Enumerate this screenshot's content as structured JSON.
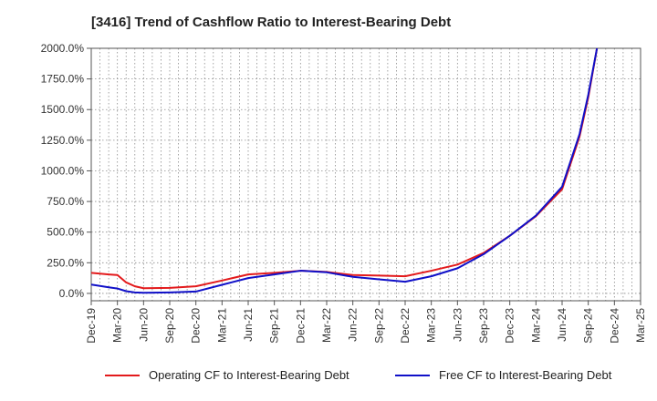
{
  "chart_data": {
    "type": "line",
    "title": "[3416]  Trend of Cashflow Ratio to Interest-Bearing Debt",
    "xlabel": "",
    "ylabel": "",
    "x": [
      "Dec-19",
      "Mar-20",
      "Jun-20",
      "Sep-20",
      "Dec-20",
      "Mar-21",
      "Jun-21",
      "Sep-21",
      "Dec-21",
      "Mar-22",
      "Jun-22",
      "Sep-22",
      "Dec-22",
      "Mar-23",
      "Jun-23",
      "Sep-23",
      "Dec-23",
      "Mar-24",
      "Jun-24",
      "Sep-24",
      "Dec-24",
      "Mar-25"
    ],
    "ylim": [
      -60,
      2000
    ],
    "yticks": [
      0,
      250,
      500,
      750,
      1000,
      1250,
      1500,
      1750,
      2000
    ],
    "ytick_labels": [
      "0.0%",
      "250.0%",
      "500.0%",
      "750.0%",
      "1000.0%",
      "1250.0%",
      "1500.0%",
      "1750.0%",
      "2000.0%"
    ],
    "grid": true,
    "legend_position": "bottom",
    "series": [
      {
        "name": "Operating CF to Interest-Bearing Debt",
        "color": "#e31a1c",
        "points": [
          [
            0,
            168
          ],
          [
            0.667,
            155
          ],
          [
            1,
            150
          ],
          [
            1.333,
            90
          ],
          [
            1.667,
            58
          ],
          [
            2,
            42
          ],
          [
            3,
            45
          ],
          [
            4,
            58
          ],
          [
            5,
            105
          ],
          [
            6,
            155
          ],
          [
            7,
            168
          ],
          [
            8,
            185
          ],
          [
            9,
            175
          ],
          [
            10,
            150
          ],
          [
            11,
            145
          ],
          [
            12,
            140
          ],
          [
            13,
            185
          ],
          [
            14,
            235
          ],
          [
            15,
            330
          ],
          [
            16,
            470
          ],
          [
            17,
            630
          ],
          [
            18,
            850
          ],
          [
            18.667,
            1280
          ],
          [
            19,
            1600
          ],
          [
            19.333,
            2000
          ]
        ]
      },
      {
        "name": "Free CF to Interest-Bearing Debt",
        "color": "#1010c8",
        "points": [
          [
            0,
            72
          ],
          [
            0.667,
            50
          ],
          [
            1,
            40
          ],
          [
            1.333,
            18
          ],
          [
            1.667,
            8
          ],
          [
            2,
            5
          ],
          [
            3,
            8
          ],
          [
            4,
            15
          ],
          [
            5,
            70
          ],
          [
            6,
            125
          ],
          [
            7,
            155
          ],
          [
            8,
            185
          ],
          [
            9,
            172
          ],
          [
            10,
            135
          ],
          [
            11,
            115
          ],
          [
            12,
            95
          ],
          [
            13,
            140
          ],
          [
            14,
            205
          ],
          [
            15,
            320
          ],
          [
            16,
            470
          ],
          [
            17,
            635
          ],
          [
            18,
            870
          ],
          [
            18.667,
            1300
          ],
          [
            19,
            1620
          ],
          [
            19.333,
            2000
          ]
        ]
      }
    ]
  }
}
